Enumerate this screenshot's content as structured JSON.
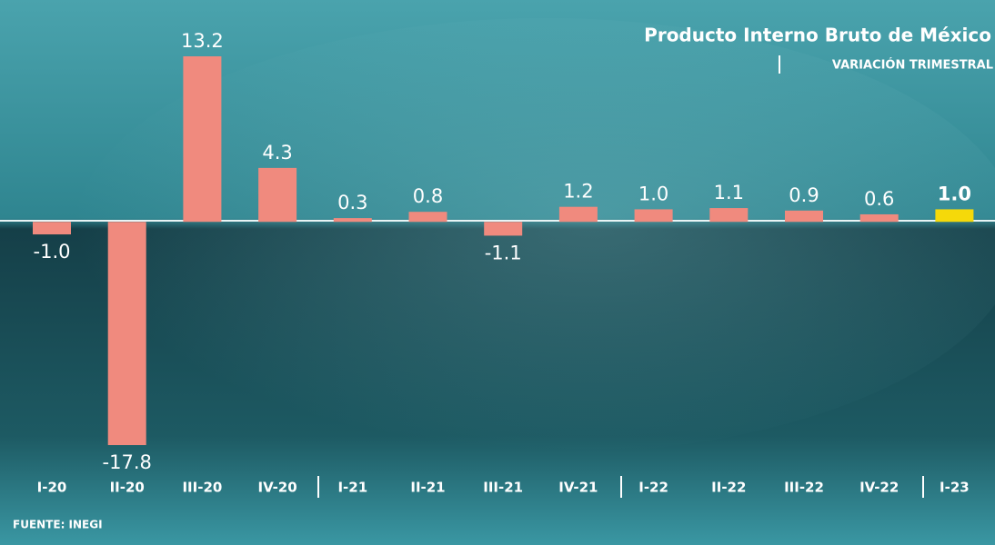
{
  "chart_data": {
    "type": "bar",
    "title": "Producto Interno Bruto de México",
    "subtitle": "VARIACIÓN TRIMESTRAL",
    "source": "FUENTE: INEGI",
    "categories": [
      "I-20",
      "II-20",
      "III-20",
      "IV-20",
      "I-21",
      "II-21",
      "III-21",
      "IV-21",
      "I-22",
      "II-22",
      "III-22",
      "IV-22",
      "I-23"
    ],
    "values": [
      -1.0,
      -17.8,
      13.2,
      4.3,
      0.3,
      0.8,
      -1.1,
      1.2,
      1.0,
      1.1,
      0.9,
      0.6,
      1.0
    ],
    "value_labels": [
      "-1.0",
      "-17.8",
      "13.2",
      "4.3",
      "0.3",
      "0.8",
      "-1.1",
      "1.2",
      "1.0",
      "1.1",
      "0.9",
      "0.6",
      "1.0"
    ],
    "colors": [
      "#f08a7e",
      "#f08a7e",
      "#f08a7e",
      "#f08a7e",
      "#f08a7e",
      "#f08a7e",
      "#f08a7e",
      "#f08a7e",
      "#f08a7e",
      "#f08a7e",
      "#f08a7e",
      "#f08a7e",
      "#f5d90a"
    ]
  }
}
